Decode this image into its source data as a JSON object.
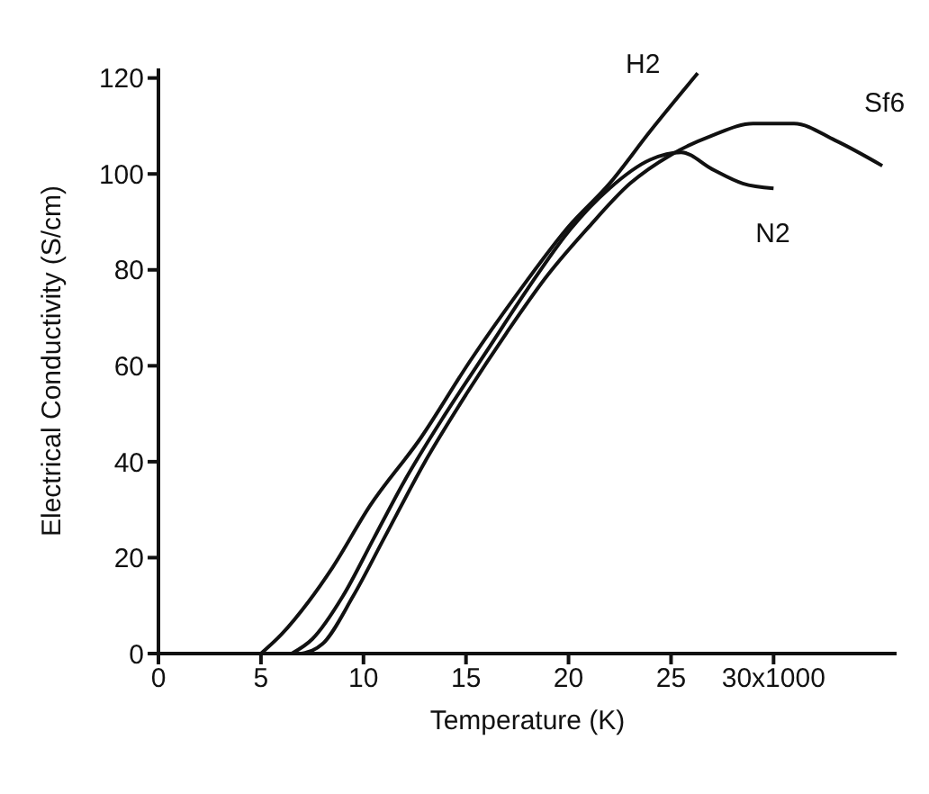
{
  "chart_data": {
    "type": "line",
    "xlabel": "Temperature (K)",
    "ylabel": "Electrical Conductivity (S/cm)",
    "xlim": [
      0,
      36
    ],
    "xticks": [
      0,
      5,
      10,
      15,
      20,
      25,
      {
        "value": 30,
        "label": "30x1000"
      }
    ],
    "ylim": [
      0,
      122
    ],
    "yticks": [
      0,
      20,
      40,
      60,
      80,
      100,
      120
    ],
    "grid": false,
    "legend": false,
    "marker": "none",
    "series": [
      {
        "name": "H2",
        "color": "#111111",
        "x": [
          5,
          6,
          7.3,
          8.5,
          10.3,
          12.8,
          15.2,
          17.5,
          20,
          22,
          24,
          26.3
        ],
        "values": [
          0,
          4,
          10.7,
          18,
          30.7,
          45,
          61,
          75,
          89,
          98,
          109,
          121
        ]
      },
      {
        "name": "N2",
        "color": "#111111",
        "x": [
          6.5,
          7.5,
          9,
          10.5,
          12,
          14,
          16,
          18,
          20,
          22,
          24,
          25.5,
          27,
          28.5,
          30
        ],
        "values": [
          0,
          3,
          12,
          24,
          36,
          50,
          63,
          76,
          88,
          97,
          103,
          104.5,
          101,
          98,
          97
        ]
      },
      {
        "name": "Sf6",
        "color": "#111111",
        "x": [
          7,
          8,
          9.5,
          11,
          13,
          15,
          17,
          19,
          21,
          23,
          25,
          27,
          29,
          31,
          33,
          35.3
        ],
        "values": [
          0,
          2,
          12,
          24,
          40,
          54,
          67,
          79,
          89,
          98,
          104,
          108,
          110.5,
          110.5,
          107,
          101.7
        ]
      }
    ]
  }
}
